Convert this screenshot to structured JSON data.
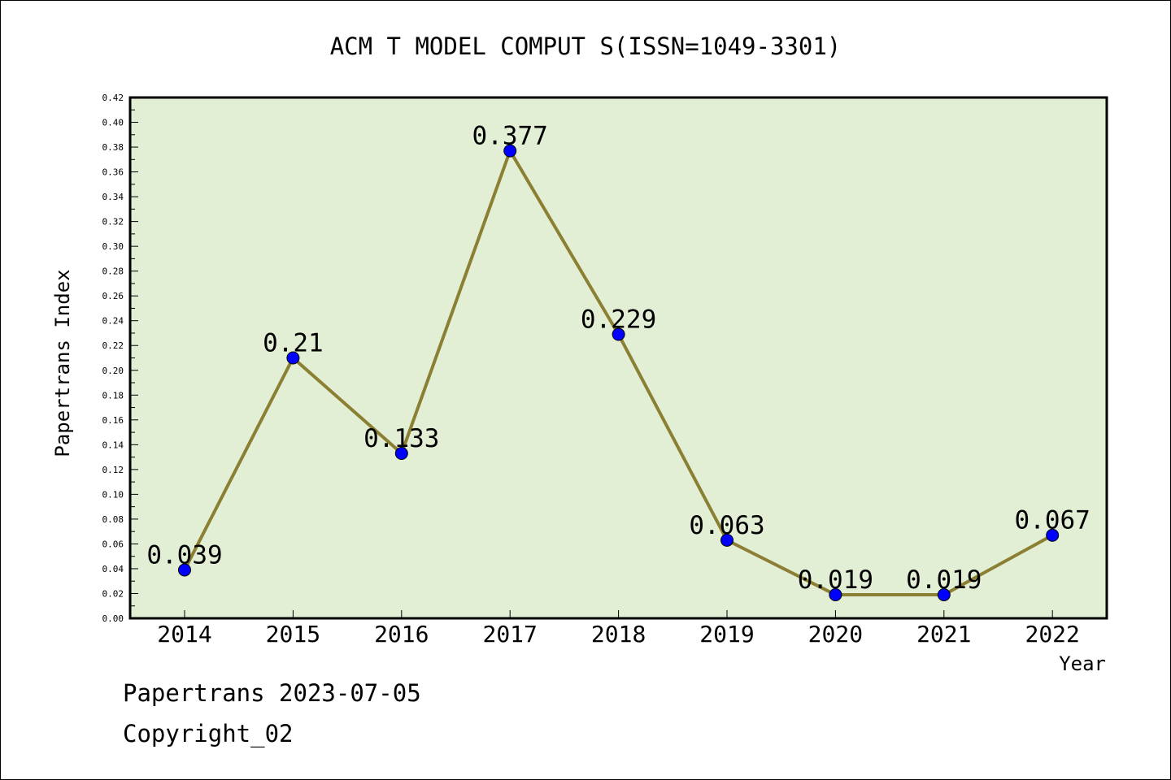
{
  "chart_data": {
    "type": "line",
    "title": "ACM T MODEL COMPUT S(ISSN=1049-3301)",
    "xlabel": "Year",
    "ylabel": "Papertrans Index",
    "categories": [
      "2014",
      "2015",
      "2016",
      "2017",
      "2018",
      "2019",
      "2020",
      "2021",
      "2022"
    ],
    "series": [
      {
        "values": [
          0.039,
          0.21,
          0.133,
          0.377,
          0.229,
          0.063,
          0.019,
          0.019,
          0.067
        ],
        "labels": [
          "0.039",
          "0.21",
          "0.133",
          "0.377",
          "0.229",
          "0.063",
          "0.019",
          "0.019",
          "0.067"
        ]
      }
    ],
    "ylim": [
      0,
      0.42
    ],
    "yticks": [
      "0.00",
      "0.02",
      "0.04",
      "0.06",
      "0.08",
      "0.10",
      "0.12",
      "0.14",
      "0.16",
      "0.18",
      "0.20",
      "0.22",
      "0.24",
      "0.26",
      "0.28",
      "0.30",
      "0.32",
      "0.34",
      "0.36",
      "0.38",
      "0.40",
      "0.42"
    ],
    "grid": false,
    "colors": {
      "plot_background": "#e2efd5",
      "line": "#8b7f33",
      "marker": "#0000ff"
    }
  },
  "footer": {
    "line1": "Papertrans 2023-07-05",
    "line2": "Copyright_02"
  }
}
